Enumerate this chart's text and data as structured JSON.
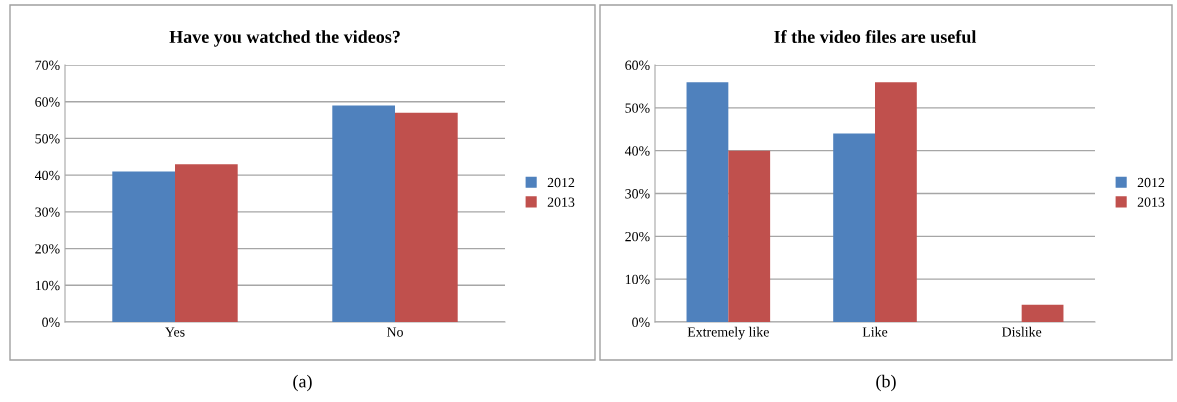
{
  "chart_data": [
    {
      "type": "bar",
      "title": "Have you watched the videos?",
      "categories": [
        "Yes",
        "No"
      ],
      "series": [
        {
          "name": "2012",
          "color": "#4f81bd",
          "values": [
            41,
            59
          ]
        },
        {
          "name": "2013",
          "color": "#c0504d",
          "values": [
            43,
            57
          ]
        }
      ],
      "ylim": [
        0,
        70
      ],
      "yticks": [
        {
          "value": 0,
          "label": "0%"
        },
        {
          "value": 10,
          "label": "10%"
        },
        {
          "value": 20,
          "label": "20%"
        },
        {
          "value": 30,
          "label": "30%"
        },
        {
          "value": 40,
          "label": "40%"
        },
        {
          "value": 50,
          "label": "50%"
        },
        {
          "value": 60,
          "label": "60%"
        },
        {
          "value": 70,
          "label": "70%"
        }
      ],
      "grid": "y",
      "legend": "right",
      "annotations": [
        "(a)"
      ]
    },
    {
      "type": "bar",
      "title": "If the video files are useful",
      "categories": [
        "Extremely like",
        "Like",
        "Dislike"
      ],
      "series": [
        {
          "name": "2012",
          "color": "#4f81bd",
          "values": [
            56,
            44,
            0
          ]
        },
        {
          "name": "2013",
          "color": "#c0504d",
          "values": [
            40,
            56,
            4
          ]
        }
      ],
      "ylim": [
        0,
        60
      ],
      "yticks": [
        {
          "value": 0,
          "label": "0%"
        },
        {
          "value": 10,
          "label": "10%"
        },
        {
          "value": 20,
          "label": "20%"
        },
        {
          "value": 30,
          "label": "30%"
        },
        {
          "value": 40,
          "label": "40%"
        },
        {
          "value": 50,
          "label": "50%"
        },
        {
          "value": 60,
          "label": "60%"
        }
      ],
      "grid": "y",
      "legend": "right",
      "annotations": [
        "(b)"
      ]
    }
  ]
}
